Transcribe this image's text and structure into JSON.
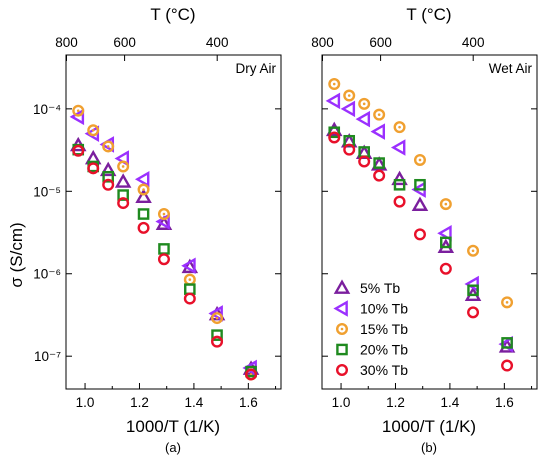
{
  "ylabel": "σ (S/cm)",
  "colors": {
    "5% Tb": "#7b1f9e",
    "10% Tb": "#9b30ff",
    "15% Tb": "#f0a030",
    "20% Tb": "#1f8a1f",
    "30% Tb": "#e8102a"
  },
  "chart_data": [
    {
      "type": "scatter",
      "panel_label": "(a)",
      "title": "Dry Air",
      "xlabel": "1000/T (1/K)",
      "ylabel": "σ (S/cm)",
      "top_axis_label": "T (°C)",
      "top_ticks": [
        {
          "label": "800",
          "celsius": 800
        },
        {
          "label": "600",
          "celsius": 600
        },
        {
          "label": "400",
          "celsius": 400
        }
      ],
      "xlim": [
        0.93,
        1.72
      ],
      "xticks": [
        1.0,
        1.2,
        1.4,
        1.6
      ],
      "xtick_labels": [
        "1.0",
        "1.2",
        "1.4",
        "1.6"
      ],
      "ylim": [
        4e-08,
        0.00045
      ],
      "yscale": "log",
      "yticks": [
        1e-07,
        1e-06,
        1e-05,
        0.0001
      ],
      "ytick_labels": [
        "10⁻⁷",
        "10⁻⁶",
        "10⁻⁵",
        "10⁻⁴"
      ],
      "series": [
        {
          "name": "5% Tb",
          "marker": "triangle-up",
          "x": [
            0.975,
            1.03,
            1.085,
            1.14,
            1.215,
            1.29,
            1.385,
            1.485,
            1.61
          ],
          "y": [
            3.6e-05,
            2.5e-05,
            1.8e-05,
            1.3e-05,
            8.5e-06,
            4e-06,
            1.2e-06,
            3.2e-07,
            7e-08
          ]
        },
        {
          "name": "10% Tb",
          "marker": "triangle-left",
          "x": [
            0.975,
            1.03,
            1.085,
            1.14,
            1.215,
            1.29,
            1.385,
            1.485,
            1.61
          ],
          "y": [
            8e-05,
            5e-05,
            3.7e-05,
            2.5e-05,
            1.4e-05,
            4.3e-06,
            1.25e-06,
            3.3e-07,
            7.2e-08
          ]
        },
        {
          "name": "15% Tb",
          "marker": "circle-dot",
          "x": [
            0.975,
            1.03,
            1.085,
            1.14,
            1.215,
            1.29,
            1.385,
            1.485,
            1.61
          ],
          "y": [
            9.5e-05,
            5.5e-05,
            3.5e-05,
            2e-05,
            1.05e-05,
            5.3e-06,
            8.5e-07,
            2.9e-07,
            6e-08
          ]
        },
        {
          "name": "20% Tb",
          "marker": "square",
          "x": [
            0.975,
            1.03,
            1.085,
            1.14,
            1.215,
            1.29,
            1.385,
            1.485,
            1.61
          ],
          "y": [
            3.2e-05,
            2e-05,
            1.5e-05,
            9e-06,
            5.3e-06,
            2e-06,
            6.5e-07,
            1.8e-07,
            6.5e-08
          ]
        },
        {
          "name": "30% Tb",
          "marker": "circle",
          "x": [
            0.975,
            1.03,
            1.085,
            1.14,
            1.215,
            1.29,
            1.385,
            1.485,
            1.61
          ],
          "y": [
            3.1e-05,
            1.9e-05,
            1.2e-05,
            7.2e-06,
            3.6e-06,
            1.5e-06,
            5e-07,
            1.5e-07,
            6e-08
          ]
        }
      ]
    },
    {
      "type": "scatter",
      "panel_label": "(b)",
      "title": "Wet Air",
      "xlabel": "1000/T (1/K)",
      "top_axis_label": "T (°C)",
      "top_ticks": [
        {
          "label": "800",
          "celsius": 800
        },
        {
          "label": "600",
          "celsius": 600
        },
        {
          "label": "400",
          "celsius": 400
        }
      ],
      "xlim": [
        0.93,
        1.72
      ],
      "xticks": [
        1.0,
        1.2,
        1.4,
        1.6
      ],
      "xtick_labels": [
        "1.0",
        "1.2",
        "1.4",
        "1.6"
      ],
      "ylim": [
        4e-08,
        0.00045
      ],
      "yscale": "log",
      "yticks": [
        1e-07,
        1e-06,
        1e-05,
        0.0001
      ],
      "legend_position": "bottom-left",
      "series": [
        {
          "name": "5% Tb",
          "marker": "triangle-up",
          "x": [
            0.975,
            1.03,
            1.085,
            1.14,
            1.215,
            1.29,
            1.385,
            1.485,
            1.61
          ],
          "y": [
            5.5e-05,
            4e-05,
            2.9e-05,
            2.1e-05,
            1.4e-05,
            6.8e-06,
            2.1e-06,
            5.5e-07,
            1.3e-07
          ]
        },
        {
          "name": "10% Tb",
          "marker": "triangle-left",
          "x": [
            0.975,
            1.03,
            1.085,
            1.14,
            1.215,
            1.29,
            1.385,
            1.485,
            1.61
          ],
          "y": [
            0.000125,
            0.0001,
            7.5e-05,
            5.3e-05,
            3.4e-05,
            1.05e-05,
            3.1e-06,
            7.5e-07,
            1.4e-07
          ]
        },
        {
          "name": "15% Tb",
          "marker": "circle-dot",
          "x": [
            0.975,
            1.03,
            1.085,
            1.14,
            1.215,
            1.29,
            1.385,
            1.485,
            1.61
          ],
          "y": [
            0.0002,
            0.000145,
            0.000115,
            8.5e-05,
            6e-05,
            2.4e-05,
            7e-06,
            1.9e-06,
            4.5e-07
          ]
        },
        {
          "name": "20% Tb",
          "marker": "square",
          "x": [
            0.975,
            1.03,
            1.085,
            1.14,
            1.215,
            1.29,
            1.385,
            1.485,
            1.61
          ],
          "y": [
            5.2e-05,
            4.1e-05,
            3e-05,
            2.2e-05,
            1.2e-05,
            1.2e-05,
            2.4e-06,
            6.3e-07,
            1.45e-07
          ]
        },
        {
          "name": "30% Tb",
          "marker": "circle",
          "x": [
            0.975,
            1.03,
            1.085,
            1.14,
            1.215,
            1.29,
            1.385,
            1.485,
            1.61
          ],
          "y": [
            4.5e-05,
            3.2e-05,
            2.3e-05,
            1.55e-05,
            7.5e-06,
            3e-06,
            1.15e-06,
            3.4e-07,
            7.7e-08
          ]
        }
      ]
    }
  ]
}
